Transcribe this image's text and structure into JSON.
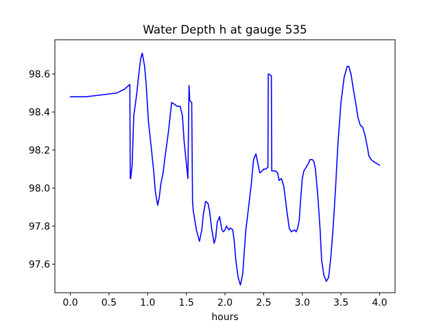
{
  "chart_data": {
    "type": "line",
    "title": "Water Depth h at gauge 535",
    "xlabel": "hours",
    "ylabel": "",
    "xlim": [
      -0.2,
      4.2
    ],
    "ylim": [
      97.45,
      98.78
    ],
    "xticks": [
      0.0,
      0.5,
      1.0,
      1.5,
      2.0,
      2.5,
      3.0,
      3.5,
      4.0
    ],
    "xtick_labels": [
      "0.0",
      "0.5",
      "1.0",
      "1.5",
      "2.0",
      "2.5",
      "3.0",
      "3.5",
      "4.0"
    ],
    "yticks": [
      97.6,
      97.8,
      98.0,
      98.2,
      98.4,
      98.6
    ],
    "ytick_labels": [
      "97.6",
      "97.8",
      "98.0",
      "98.2",
      "98.4",
      "98.6"
    ],
    "grid": false,
    "legend": "none",
    "series": [
      {
        "color": "#0000ff",
        "x": [
          0.0,
          0.2,
          0.4,
          0.6,
          0.7,
          0.77,
          0.775,
          0.78,
          0.8,
          0.82,
          0.86,
          0.88,
          0.91,
          0.93,
          0.96,
          0.98,
          1.01,
          1.05,
          1.08,
          1.1,
          1.13,
          1.15,
          1.17,
          1.2,
          1.22,
          1.27,
          1.31,
          1.35,
          1.38,
          1.42,
          1.45,
          1.47,
          1.52,
          1.535,
          1.54,
          1.545,
          1.57,
          1.58,
          1.59,
          1.63,
          1.67,
          1.7,
          1.72,
          1.75,
          1.78,
          1.8,
          1.83,
          1.86,
          1.88,
          1.9,
          1.93,
          1.96,
          1.98,
          2.0,
          2.02,
          2.05,
          2.07,
          2.1,
          2.12,
          2.14,
          2.17,
          2.2,
          2.23,
          2.25,
          2.27,
          2.3,
          2.34,
          2.37,
          2.4,
          2.43,
          2.45,
          2.48,
          2.5,
          2.53,
          2.555,
          2.56,
          2.565,
          2.6,
          2.605,
          2.61,
          2.65,
          2.68,
          2.7,
          2.73,
          2.76,
          2.8,
          2.83,
          2.86,
          2.9,
          2.92,
          2.94,
          2.96,
          2.98,
          3.0,
          3.02,
          3.05,
          3.08,
          3.1,
          3.13,
          3.15,
          3.17,
          3.2,
          3.23,
          3.25,
          3.28,
          3.31,
          3.34,
          3.37,
          3.4,
          3.43,
          3.46,
          3.5,
          3.54,
          3.58,
          3.6,
          3.63,
          3.66,
          3.69,
          3.72,
          3.75,
          3.78,
          3.81,
          3.84,
          3.86,
          3.89,
          3.92,
          3.96,
          4.0
        ],
        "y": [
          98.48,
          98.48,
          98.49,
          98.5,
          98.52,
          98.545,
          98.05,
          98.05,
          98.12,
          98.38,
          98.5,
          98.58,
          98.68,
          98.71,
          98.64,
          98.55,
          98.35,
          98.2,
          98.08,
          97.98,
          97.91,
          97.95,
          98.02,
          98.08,
          98.15,
          98.3,
          98.45,
          98.44,
          98.43,
          98.43,
          98.38,
          98.25,
          98.05,
          98.54,
          98.5,
          98.46,
          98.45,
          97.93,
          97.88,
          97.78,
          97.72,
          97.78,
          97.86,
          97.93,
          97.92,
          97.88,
          97.78,
          97.71,
          97.74,
          97.82,
          97.85,
          97.78,
          97.77,
          97.78,
          97.8,
          97.78,
          97.79,
          97.78,
          97.72,
          97.62,
          97.53,
          97.49,
          97.55,
          97.67,
          97.78,
          97.88,
          98.02,
          98.15,
          98.18,
          98.12,
          98.08,
          98.09,
          98.1,
          98.1,
          98.11,
          98.6,
          98.6,
          98.59,
          98.09,
          98.09,
          98.09,
          98.08,
          98.04,
          98.05,
          98.01,
          97.88,
          97.79,
          97.77,
          97.78,
          97.77,
          97.79,
          97.83,
          97.95,
          98.05,
          98.09,
          98.11,
          98.13,
          98.15,
          98.15,
          98.14,
          98.1,
          97.96,
          97.78,
          97.62,
          97.54,
          97.51,
          97.53,
          97.64,
          97.8,
          98.0,
          98.23,
          98.45,
          98.58,
          98.64,
          98.64,
          98.6,
          98.52,
          98.45,
          98.37,
          98.33,
          98.32,
          98.28,
          98.22,
          98.17,
          98.15,
          98.14,
          98.13,
          98.12
        ]
      }
    ]
  }
}
